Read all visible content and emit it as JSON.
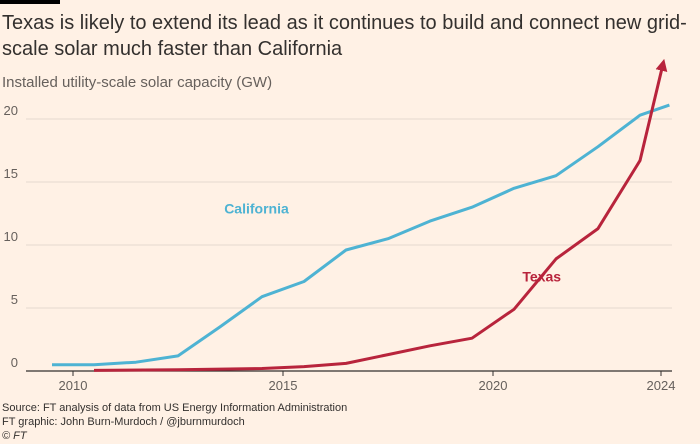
{
  "title": "Texas is likely to extend its lead as it continues to build and connect new grid-scale solar much faster than California",
  "subtitle": "Installed utility-scale solar capacity (GW)",
  "source": "Source: FT analysis of data from US Energy Information Administration",
  "credit": "FT graphic: John Burn-Murdoch / @jburnmurdoch",
  "copyright": "© FT",
  "colors": {
    "background": "#FFF1E5",
    "california": "#4EB3D3",
    "texas": "#B8243C",
    "gridline": "#E6D9CE",
    "text": "#33302E",
    "muted": "#66605C"
  },
  "chart_data": {
    "type": "line",
    "title": "Texas is likely to extend its lead as it continues to build and connect new grid-scale solar much faster than California",
    "ylabel": "Installed utility-scale solar capacity (GW)",
    "xlabel": "",
    "xlim": [
      2009.5,
      2024.3
    ],
    "ylim": [
      0,
      22
    ],
    "x_ticks": [
      2010,
      2015,
      2020,
      2024
    ],
    "y_ticks": [
      0,
      5,
      10,
      15,
      20
    ],
    "grid": true,
    "series": [
      {
        "name": "California",
        "label": "California",
        "color": "#4EB3D3",
        "points": [
          [
            2009.5,
            0.5
          ],
          [
            2010.5,
            0.5
          ],
          [
            2011.5,
            0.7
          ],
          [
            2012.5,
            1.2
          ],
          [
            2013.5,
            3.5
          ],
          [
            2014.5,
            5.9
          ],
          [
            2015.5,
            7.1
          ],
          [
            2016.5,
            9.6
          ],
          [
            2017.5,
            10.5
          ],
          [
            2018.5,
            11.9
          ],
          [
            2019.5,
            13.0
          ],
          [
            2020.5,
            14.5
          ],
          [
            2021.5,
            15.5
          ],
          [
            2022.5,
            17.8
          ],
          [
            2023.5,
            20.3
          ],
          [
            2024.2,
            21.1
          ]
        ]
      },
      {
        "name": "Texas",
        "label": "Texas",
        "color": "#B8243C",
        "points": [
          [
            2010.5,
            0.05
          ],
          [
            2012.5,
            0.1
          ],
          [
            2014.5,
            0.2
          ],
          [
            2015.5,
            0.35
          ],
          [
            2016.5,
            0.6
          ],
          [
            2017.5,
            1.3
          ],
          [
            2018.5,
            2.0
          ],
          [
            2019.5,
            2.6
          ],
          [
            2020.5,
            4.9
          ],
          [
            2021.5,
            8.9
          ],
          [
            2022.5,
            11.3
          ],
          [
            2023.5,
            16.7
          ],
          [
            2024.05,
            24.4
          ]
        ],
        "arrow": true
      }
    ]
  }
}
